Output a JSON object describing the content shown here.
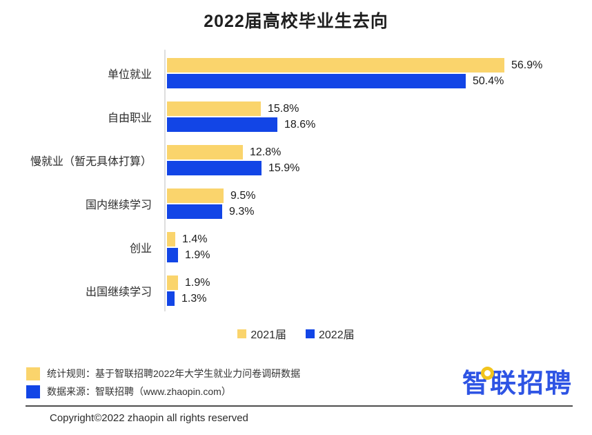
{
  "title": "2022届高校毕业生去向",
  "chart_data": {
    "type": "bar",
    "orientation": "horizontal",
    "title": "2022届高校毕业生去向",
    "categories": [
      "单位就业",
      "自由职业",
      "慢就业（暂无具体打算）",
      "国内继续学习",
      "创业",
      "出国继续学习"
    ],
    "series": [
      {
        "name": "2021届",
        "color": "#fad46c",
        "values": [
          56.9,
          15.8,
          12.8,
          9.5,
          1.4,
          1.9
        ],
        "value_labels": [
          "56.9%",
          "15.8%",
          "12.8%",
          "9.5%",
          "1.4%",
          "1.9%"
        ]
      },
      {
        "name": "2022届",
        "color": "#1245e6",
        "values": [
          50.4,
          18.6,
          15.9,
          9.3,
          1.9,
          1.3
        ],
        "value_labels": [
          "50.4%",
          "18.6%",
          "15.9%",
          "9.3%",
          "1.9%",
          "1.3%"
        ]
      }
    ],
    "value_suffix": "%",
    "xlim": [
      0,
      60
    ],
    "grid": false,
    "legend_position": "bottom-center"
  },
  "legend": {
    "items": [
      {
        "label": "2021届",
        "color": "#fad46c"
      },
      {
        "label": "2022届",
        "color": "#1245e6"
      }
    ]
  },
  "footer": {
    "notes": [
      {
        "color": "#fad46c",
        "text": "统计规则：基于智联招聘2022年大学生就业力问卷调研数据"
      },
      {
        "color": "#1245e6",
        "text": "数据来源：智联招聘（www.zhaopin.com）"
      }
    ],
    "logo_text": "智联招聘",
    "copyright": "Copyright©2022 zhaopin all rights reserved"
  },
  "colors": {
    "bar_yellow": "#fad46c",
    "bar_blue": "#1245e6",
    "logo_blue": "#2e54e4",
    "logo_yellow": "#f2c41d",
    "axis_line": "#dedede",
    "separator": "#4d4d4d",
    "text": "#1a1a1a"
  }
}
